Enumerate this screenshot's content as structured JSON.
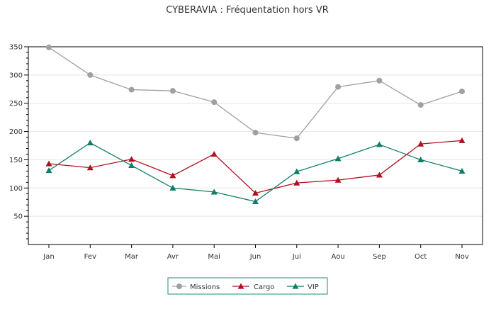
{
  "chart_data": {
    "type": "line",
    "title": "CYBERAVIA : Fréquentation hors VR",
    "xlabel": "",
    "ylabel": "",
    "categories": [
      "Jan",
      "Fev",
      "Mar",
      "Avr",
      "Mai",
      "Jun",
      "Jui",
      "Aou",
      "Sep",
      "Oct",
      "Nov"
    ],
    "ylim": [
      0,
      350
    ],
    "yticks": [
      "50",
      "100",
      "150",
      "200",
      "250",
      "300",
      "350"
    ],
    "grid": true,
    "legend_position": "bottom",
    "series": [
      {
        "name": "Missions",
        "color": "#a0a0a0",
        "marker": "circle",
        "values": [
          349,
          300,
          274,
          272,
          252,
          198,
          188,
          279,
          290,
          247,
          271
        ]
      },
      {
        "name": "Cargo",
        "color": "#b01020",
        "marker": "triangle",
        "values": [
          143,
          136,
          151,
          122,
          160,
          91,
          109,
          114,
          123,
          178,
          184
        ]
      },
      {
        "name": "VIP",
        "color": "#0e7e68",
        "marker": "triangle",
        "values": [
          131,
          180,
          140,
          100,
          93,
          76,
          129,
          152,
          177,
          150,
          130
        ]
      }
    ]
  }
}
